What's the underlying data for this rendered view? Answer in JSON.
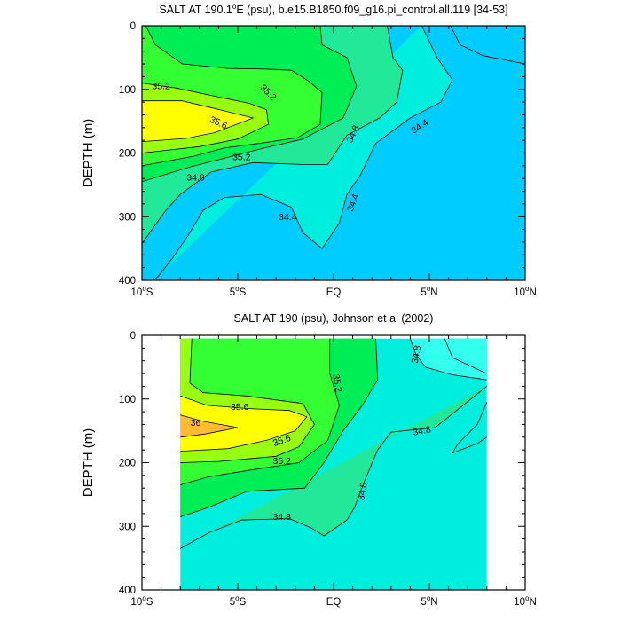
{
  "chart_data": [
    {
      "type": "contour",
      "title": "SALT AT 190.1°E (psu), b.e15.B1850.f09_g16.pi_control.all.119 [34-53]",
      "ylabel": "DEPTH (m)",
      "xlim": [
        -10,
        10
      ],
      "ylim": [
        0,
        400
      ],
      "y_inverted": true,
      "xticks": [
        {
          "v": -10,
          "label": "10°S"
        },
        {
          "v": -5,
          "label": "5°S"
        },
        {
          "v": 0,
          "label": "EQ"
        },
        {
          "v": 5,
          "label": "5°N"
        },
        {
          "v": 10,
          "label": "10°N"
        }
      ],
      "yticks": [
        {
          "v": 0,
          "label": "0"
        },
        {
          "v": 100,
          "label": "100"
        },
        {
          "v": 200,
          "label": "200"
        },
        {
          "v": 300,
          "label": "300"
        },
        {
          "v": 400,
          "label": "400"
        }
      ],
      "data_extent": {
        "x": [
          -10,
          10
        ],
        "y": [
          0,
          400
        ]
      },
      "level_fills": [
        {
          "level": 34.0,
          "color": "#00ccff"
        },
        {
          "level": 34.2,
          "color": "#33eeff"
        },
        {
          "level": 34.4,
          "color": "#00eedd"
        },
        {
          "level": 34.8,
          "color": "#22e89a"
        },
        {
          "level": 35.0,
          "color": "#00ee55"
        },
        {
          "level": 35.2,
          "color": "#33ff33"
        },
        {
          "level": 35.4,
          "color": "#99ff11"
        },
        {
          "level": 35.6,
          "color": "#ffff00"
        }
      ],
      "contours": [
        {
          "level": 34.2,
          "points": [
            [
              6.1,
              0
            ],
            [
              6.6,
              30
            ],
            [
              7.8,
              47
            ],
            [
              10,
              60
            ]
          ]
        },
        {
          "level": 34.4,
          "points": [
            [
              4.6,
              0
            ],
            [
              5.4,
              50
            ],
            [
              6.2,
              85
            ],
            [
              5.6,
              120
            ],
            [
              4.0,
              145
            ],
            [
              2.2,
              185
            ],
            [
              1.4,
              235
            ],
            [
              0.7,
              265
            ],
            [
              0.3,
              310
            ],
            [
              -0.6,
              350
            ],
            [
              -1.6,
              325
            ],
            [
              -2.2,
              285
            ],
            [
              -3.8,
              265
            ],
            [
              -5.7,
              270
            ],
            [
              -6.8,
              290
            ],
            [
              -7.6,
              330
            ],
            [
              -8.4,
              365
            ],
            [
              -9.1,
              392
            ],
            [
              -9.4,
              400
            ]
          ]
        },
        {
          "level": 34.8,
          "points": [
            [
              2.8,
              0
            ],
            [
              3.1,
              50
            ],
            [
              3.6,
              70
            ],
            [
              3.3,
              120
            ],
            [
              2.4,
              145
            ],
            [
              0.7,
              172
            ],
            [
              -0.3,
              218
            ],
            [
              -1.7,
              218
            ],
            [
              -4.2,
              215
            ],
            [
              -6.4,
              230
            ],
            [
              -8.0,
              265
            ],
            [
              -8.8,
              292
            ],
            [
              -10,
              342
            ]
          ]
        },
        {
          "level": 35.0,
          "points": [
            [
              -0.7,
              0
            ],
            [
              -0.6,
              30
            ],
            [
              0.7,
              50
            ],
            [
              1.2,
              95
            ],
            [
              0.5,
              145
            ],
            [
              -1.6,
              178
            ],
            [
              -4.0,
              195
            ],
            [
              -7.5,
              222
            ],
            [
              -10,
              245
            ]
          ]
        },
        {
          "level": 35.2,
          "points": [
            [
              -9.8,
              0
            ],
            [
              -9.3,
              30
            ],
            [
              -7.9,
              60
            ],
            [
              -5.5,
              67
            ],
            [
              -3.6,
              68
            ],
            [
              -2.2,
              70
            ],
            [
              -1.3,
              87
            ],
            [
              -0.6,
              105
            ],
            [
              -0.7,
              155
            ],
            [
              -1.9,
              176
            ],
            [
              -3.9,
              185
            ],
            [
              -5.7,
              192
            ],
            [
              -7.3,
              205
            ],
            [
              -10,
              220
            ]
          ]
        },
        {
          "level": 35.4,
          "points": [
            [
              -10,
              90
            ],
            [
              -8.2,
              98
            ],
            [
              -6.0,
              112
            ],
            [
              -4.4,
              122
            ],
            [
              -3.5,
              132
            ],
            [
              -3.4,
              155
            ],
            [
              -5.0,
              178
            ],
            [
              -7.0,
              190
            ],
            [
              -10,
              200
            ]
          ]
        },
        {
          "level": 35.6,
          "points": [
            [
              -10,
              118
            ],
            [
              -7.9,
              118
            ],
            [
              -6.2,
              130
            ],
            [
              -4.2,
              145
            ],
            [
              -6.2,
              168
            ],
            [
              -7.7,
              177
            ],
            [
              -10,
              182
            ]
          ]
        }
      ],
      "contour_labels": [
        {
          "text": "35.2",
          "x": -9.0,
          "y": 95
        },
        {
          "text": "35.2",
          "x": -3.4,
          "y": 105,
          "angle": 45
        },
        {
          "text": "35.6",
          "x": -6.0,
          "y": 152,
          "angle": 25
        },
        {
          "text": "34.8",
          "x": 1.0,
          "y": 170,
          "angle": -65
        },
        {
          "text": "35.2",
          "x": -4.8,
          "y": 206
        },
        {
          "text": "34.8",
          "x": -7.2,
          "y": 238
        },
        {
          "text": "34.4",
          "x": 4.5,
          "y": 158,
          "angle": -33
        },
        {
          "text": "34.4",
          "x": 1.0,
          "y": 278,
          "angle": -70
        },
        {
          "text": "34.4",
          "x": -2.4,
          "y": 300
        }
      ]
    },
    {
      "type": "contour",
      "title": "SALT AT 190 (psu), Johnson et al (2002)",
      "ylabel": "DEPTH (m)",
      "xlim": [
        -10,
        10
      ],
      "ylim": [
        0,
        400
      ],
      "y_inverted": true,
      "xticks": [
        {
          "v": -10,
          "label": "10°S"
        },
        {
          "v": -5,
          "label": "5°S"
        },
        {
          "v": 0,
          "label": "EQ"
        },
        {
          "v": 5,
          "label": "5°N"
        },
        {
          "v": 10,
          "label": "10°N"
        }
      ],
      "yticks": [
        {
          "v": 0,
          "label": "0"
        },
        {
          "v": 100,
          "label": "100"
        },
        {
          "v": 200,
          "label": "200"
        },
        {
          "v": 300,
          "label": "300"
        },
        {
          "v": 400,
          "label": "400"
        }
      ],
      "data_extent": {
        "x": [
          -8,
          8
        ],
        "y": [
          5,
          400
        ]
      },
      "level_fills": [
        {
          "level": 34.0,
          "color": "#00eedd"
        },
        {
          "level": 34.6,
          "color": "#33ffee"
        },
        {
          "level": 34.8,
          "color": "#22e89a"
        },
        {
          "level": 35.0,
          "color": "#00ee55"
        },
        {
          "level": 35.2,
          "color": "#33ff33"
        },
        {
          "level": 35.4,
          "color": "#99ff11"
        },
        {
          "level": 35.6,
          "color": "#ffff00"
        },
        {
          "level": 36.0,
          "color": "#ffbb33"
        }
      ],
      "contours": [
        {
          "level": 34.6,
          "points": [
            [
              5.8,
              5
            ],
            [
              6.2,
              35
            ],
            [
              8,
              60
            ]
          ]
        },
        {
          "level": 34.6,
          "points": [
            [
              8,
              105
            ],
            [
              7.5,
              140
            ],
            [
              6.5,
              170
            ],
            [
              6.2,
              185
            ],
            [
              7.5,
              170
            ],
            [
              8,
              160
            ]
          ]
        },
        {
          "level": 34.8,
          "points": [
            [
              4.0,
              5
            ],
            [
              4.3,
              30
            ],
            [
              4.8,
              50
            ],
            [
              6.2,
              62
            ],
            [
              8,
              70
            ]
          ]
        },
        {
          "level": 34.8,
          "points": [
            [
              8,
              80
            ],
            [
              5.3,
              145
            ],
            [
              3.0,
              152
            ],
            [
              2.3,
              180
            ],
            [
              1.6,
              230
            ],
            [
              1.1,
              270
            ],
            [
              0.7,
              290
            ],
            [
              -0.5,
              315
            ],
            [
              -1.2,
              302
            ],
            [
              -2.3,
              288
            ],
            [
              -4.8,
              290
            ],
            [
              -6.5,
              310
            ],
            [
              -8,
              335
            ]
          ]
        },
        {
          "level": 35.0,
          "points": [
            [
              2.2,
              5
            ],
            [
              2.3,
              70
            ],
            [
              1.5,
              110
            ],
            [
              0.5,
              150
            ],
            [
              -0.5,
              200
            ],
            [
              -1.5,
              240
            ],
            [
              -4.5,
              245
            ],
            [
              -6.5,
              270
            ],
            [
              -8,
              285
            ]
          ]
        },
        {
          "level": 35.2,
          "points": [
            [
              -0.2,
              5
            ],
            [
              -0.2,
              60
            ],
            [
              0.3,
              110
            ],
            [
              -0.3,
              165
            ],
            [
              -1.8,
              200
            ],
            [
              -4.0,
              210
            ],
            [
              -6.5,
              222
            ],
            [
              -8,
              235
            ]
          ]
        },
        {
          "level": 35.4,
          "points": [
            [
              -7.4,
              5
            ],
            [
              -7.5,
              75
            ],
            [
              -6.8,
              90
            ],
            [
              -4.6,
              95
            ],
            [
              -1.6,
              107
            ],
            [
              -1.0,
              140
            ],
            [
              -1.8,
              175
            ],
            [
              -3.0,
              190
            ],
            [
              -6.0,
              198
            ],
            [
              -8,
              200
            ]
          ]
        },
        {
          "level": 35.6,
          "points": [
            [
              -8,
              95
            ],
            [
              -6.6,
              110
            ],
            [
              -4.5,
              115
            ],
            [
              -2.3,
              118
            ],
            [
              -1.4,
              128
            ],
            [
              -2.0,
              150
            ],
            [
              -3.5,
              165
            ],
            [
              -5.5,
              178
            ],
            [
              -8,
              182
            ]
          ]
        },
        {
          "level": 36.0,
          "points": [
            [
              -8,
              125
            ],
            [
              -6.8,
              135
            ],
            [
              -5.0,
              145
            ],
            [
              -6.7,
              155
            ],
            [
              -8,
              160
            ]
          ]
        }
      ],
      "contour_labels": [
        {
          "text": "34.8",
          "x": 4.3,
          "y": 30,
          "angle": -80
        },
        {
          "text": "35.2",
          "x": 0.2,
          "y": 75,
          "angle": 80
        },
        {
          "text": "35.6",
          "x": -4.9,
          "y": 112
        },
        {
          "text": "36",
          "x": -7.2,
          "y": 137
        },
        {
          "text": "35.6",
          "x": -2.7,
          "y": 165,
          "angle": -20
        },
        {
          "text": "34.8",
          "x": 4.6,
          "y": 150,
          "angle": -10
        },
        {
          "text": "35.2",
          "x": -2.7,
          "y": 197
        },
        {
          "text": "34.8",
          "x": 1.5,
          "y": 245,
          "angle": -80
        },
        {
          "text": "34.8",
          "x": -2.7,
          "y": 285
        }
      ]
    }
  ]
}
